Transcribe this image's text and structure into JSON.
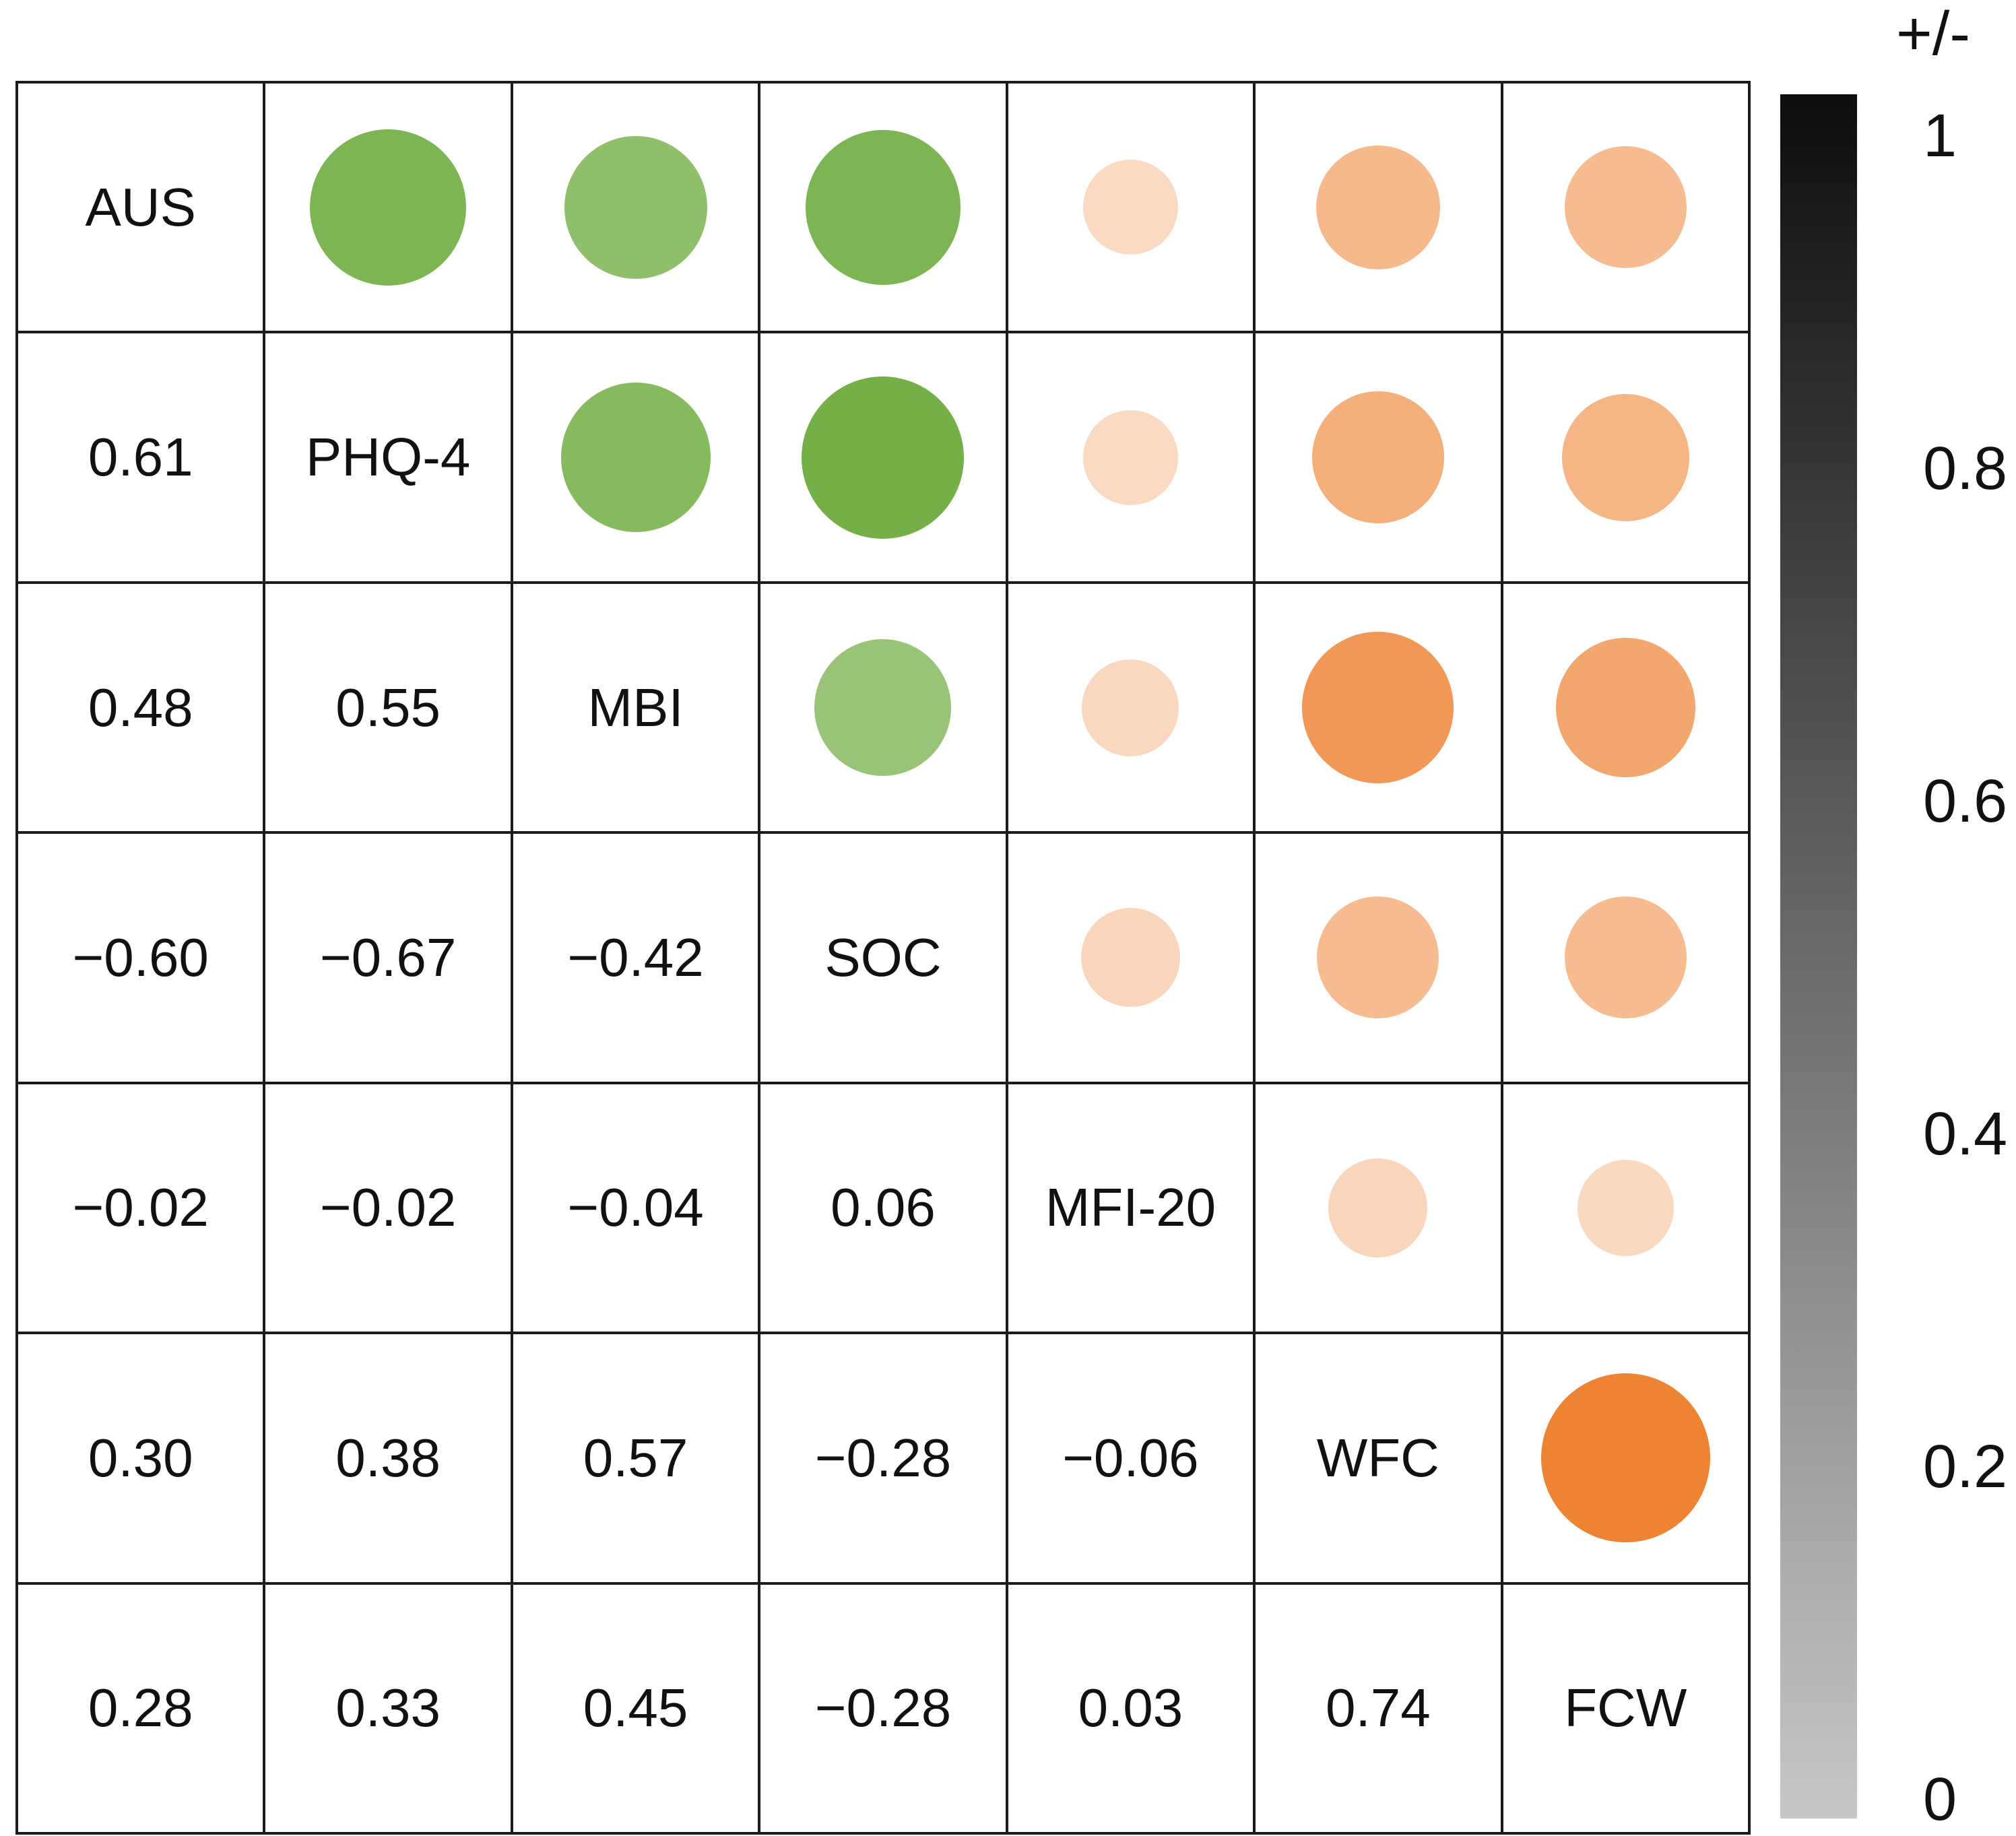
{
  "legend": {
    "title": "+/-",
    "ticks": [
      1,
      0.8,
      0.6,
      0.4,
      0.2,
      0
    ],
    "bar_top_color": "#0d0d0d",
    "bar_bottom_color": "#c7c7c7"
  },
  "chart_data": {
    "type": "heatmap",
    "subtype": "correlogram",
    "variables": [
      "AUS",
      "PHQ-4",
      "MBI",
      "SOC",
      "MFI-20",
      "WFC",
      "FCW"
    ],
    "lower_triangle_values": [
      [],
      [
        0.61
      ],
      [
        0.48,
        0.55
      ],
      [
        -0.6,
        -0.67,
        -0.42
      ],
      [
        -0.02,
        -0.02,
        -0.04,
        0.06
      ],
      [
        0.3,
        0.38,
        0.57,
        -0.28,
        -0.06
      ],
      [
        0.28,
        0.33,
        0.45,
        -0.28,
        0.03,
        0.74
      ]
    ],
    "encoding": {
      "lower_triangle": "correlation coefficient printed as number",
      "upper_triangle": "circle; diameter and color saturation increase with |r|",
      "circle_color_by_column": [
        "none",
        "green",
        "green",
        "green",
        "orange",
        "orange",
        "orange"
      ]
    },
    "colors": {
      "green_base": "#449407",
      "orange_base": "#ea6400",
      "grid_line": "#1c1c1c",
      "text": "#111111",
      "background": "#ffffff"
    },
    "legend_axis": {
      "label": "+/-",
      "range": [
        0,
        1
      ],
      "orientation": "vertical",
      "gradient": "black-to-lightgray"
    }
  }
}
